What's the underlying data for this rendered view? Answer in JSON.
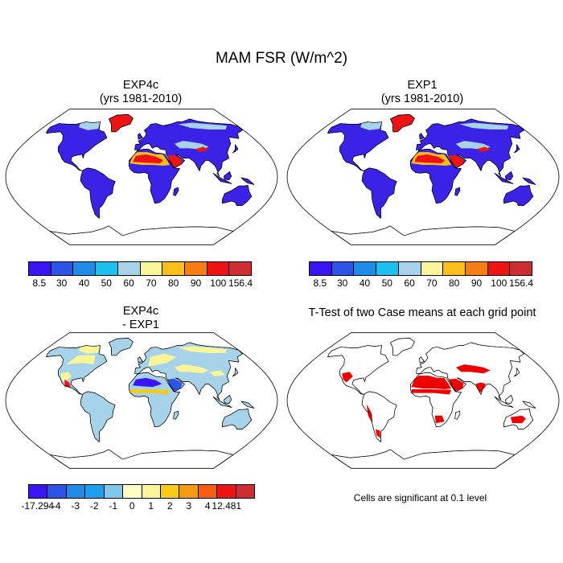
{
  "title": "MAM FSR (W/m^2)",
  "panels": [
    {
      "id": "p1",
      "line1": "EXP4c",
      "line2": "(yrs 1981-2010)",
      "kind": "abs"
    },
    {
      "id": "p2",
      "line1": "EXP1",
      "line2": "(yrs 1981-2010)",
      "kind": "abs"
    },
    {
      "id": "p3",
      "line1": "EXP4c",
      "line2": "- EXP1",
      "kind": "diff"
    },
    {
      "id": "p4",
      "line1": "T-Test of two Case means at each grid point",
      "line2": "",
      "kind": "ttest"
    }
  ],
  "colorbars": {
    "abs": {
      "colors": [
        "#3a14f2",
        "#2c55e8",
        "#1f8be6",
        "#1cc0ee",
        "#a6d3ea",
        "#fbf59a",
        "#f7bf18",
        "#f57d12",
        "#ee1414",
        "#cc2d33"
      ],
      "labels": [
        "8.5",
        "30",
        "40",
        "50",
        "60",
        "70",
        "80",
        "90",
        "100",
        "156.4"
      ]
    },
    "diff": {
      "colors": [
        "#3a14f2",
        "#2c55e8",
        "#1f8be6",
        "#1ca0ee",
        "#7ec8ea",
        "#fdfdc6",
        "#fbf59a",
        "#f7c918",
        "#f59812",
        "#f55b12",
        "#ee1414",
        "#cc2d33"
      ],
      "labels": [
        "-17.294",
        "-4",
        "-3",
        "-2",
        "-1",
        "0",
        "1",
        "2",
        "3",
        "4",
        "12.481"
      ]
    }
  },
  "note": "Cells are significant at 0.1 level",
  "map_colors": {
    "ocean": "#ffffff",
    "land_abs": "#3a22e6",
    "desert_abs_hot": "#ee1414",
    "desert_abs_warm": "#f7bf18",
    "boreal_abs": "#a6d3ea",
    "land_diff": "#a6d3ea",
    "diff_pos": "#fbf59a",
    "diff_neg": "#3a14f2",
    "ttest_sig": "#ee0000"
  }
}
